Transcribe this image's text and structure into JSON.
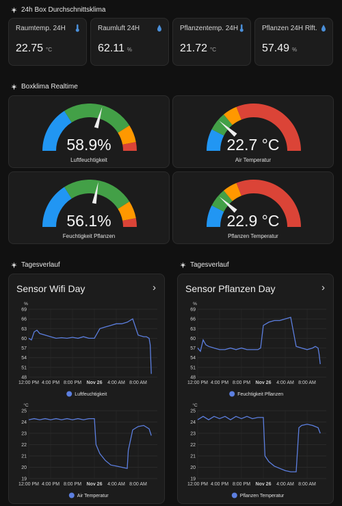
{
  "sections": {
    "avg": "24h Box Durchschnittsklima",
    "realtime": "Boxklima Realtime",
    "history_left": "Tagesverlauf",
    "history_right": "Tagesverlauf"
  },
  "stats": [
    {
      "label": "Raumtemp. 24H",
      "value": "22.75",
      "unit": "°C",
      "icon": "thermometer-icon"
    },
    {
      "label": "Raumluft 24H",
      "value": "62.11",
      "unit": "%",
      "icon": "water-drop-icon"
    },
    {
      "label": "Pflanzentemp. 24H",
      "value": "21.72",
      "unit": "°C",
      "icon": "thermometer-icon"
    },
    {
      "label": "Pflanzen 24H Rlft.",
      "value": "57.49",
      "unit": "%",
      "icon": "water-drop-icon"
    }
  ],
  "gauges": [
    {
      "value": "58.9%",
      "label": "Luftfeuchtigkeit",
      "level": 0.589,
      "type": "humidity"
    },
    {
      "value": "22.7 °C",
      "label": "Air Temperatur",
      "level": 0.227,
      "type": "temp"
    },
    {
      "value": "56.1%",
      "label": "Feuchtigkeit Pflanzen",
      "level": 0.561,
      "type": "humidity"
    },
    {
      "value": "22.9 °C",
      "label": "Pflanzen Temperatur",
      "level": 0.229,
      "type": "temp"
    }
  ],
  "colors": {
    "blue": "#2196f3",
    "green": "#43a047",
    "orange": "#ff9800",
    "red": "#db4437",
    "line": "#5c7fe0"
  },
  "chart_data": [
    {
      "title": "Sensor Wifi Day",
      "type": "line",
      "unit": "%",
      "ylim": [
        48,
        69
      ],
      "yticks": [
        48,
        51,
        54,
        57,
        60,
        63,
        66,
        69
      ],
      "xticks": [
        "12:00 PM",
        "4:00 PM",
        "8:00 PM",
        "Nov 26",
        "4:00 AM",
        "8:00 AM"
      ],
      "series": [
        {
          "name": "Luftfeuchtigkeit",
          "x": [
            0,
            0.5,
            1,
            1.5,
            2,
            3,
            4,
            5,
            6,
            7,
            8,
            9,
            10,
            11,
            12,
            13,
            14,
            15,
            16,
            17,
            18,
            19,
            20,
            21,
            21.5,
            22,
            22.2,
            22.4
          ],
          "values": [
            60,
            59.5,
            62,
            62.5,
            61.5,
            61,
            60.5,
            60,
            60.2,
            60,
            60.3,
            60,
            60.5,
            60,
            60,
            63,
            63.5,
            64,
            64.5,
            64.5,
            65,
            66,
            61,
            60.5,
            60.5,
            60,
            58,
            49
          ]
        }
      ]
    },
    {
      "title": "Sensor Pflanzen Day",
      "type": "line",
      "unit": "%",
      "ylim": [
        48,
        69
      ],
      "yticks": [
        48,
        51,
        54,
        57,
        60,
        63,
        66,
        69
      ],
      "xticks": [
        "12:00 PM",
        "4:00 PM",
        "8:00 PM",
        "Nov 26",
        "4:00 AM",
        "8:00 AM"
      ],
      "series": [
        {
          "name": "Feuchtigkeit Pflanzen",
          "x": [
            0,
            0.5,
            1,
            1.5,
            2,
            3,
            4,
            5,
            6,
            7,
            8,
            9,
            10,
            11,
            11.5,
            12,
            13,
            14,
            15,
            16,
            17,
            18,
            19,
            20,
            21,
            21.5,
            22,
            22.2,
            22.4
          ],
          "values": [
            57,
            56,
            59.5,
            58,
            57.5,
            57,
            56.5,
            56.5,
            57,
            56.5,
            57,
            56.5,
            56.5,
            56.5,
            57,
            64,
            65,
            65.5,
            65.5,
            66,
            66.5,
            57.5,
            57,
            56.5,
            57,
            57.5,
            57,
            55,
            52
          ]
        }
      ]
    },
    {
      "title": "",
      "type": "line",
      "unit": "°C",
      "ylim": [
        19,
        25
      ],
      "yticks": [
        19,
        20,
        21,
        22,
        23,
        24,
        25
      ],
      "xticks": [
        "12:00 PM",
        "4:00 PM",
        "8:00 PM",
        "Nov 26",
        "4:00 AM",
        "8:00 AM"
      ],
      "series": [
        {
          "name": "Air Temperatur",
          "x": [
            0,
            1,
            2,
            3,
            4,
            5,
            6,
            7,
            8,
            9,
            10,
            11,
            12,
            12.3,
            13,
            14,
            15,
            16,
            17,
            18,
            18.2,
            19,
            20,
            21,
            22,
            22.4
          ],
          "values": [
            24.2,
            24.3,
            24.2,
            24.3,
            24.2,
            24.3,
            24.2,
            24.3,
            24.2,
            24.3,
            24.2,
            24.3,
            24.3,
            22,
            21.2,
            20.6,
            20.2,
            20.1,
            20,
            19.9,
            21.5,
            23.3,
            23.6,
            23.7,
            23.4,
            22.8
          ]
        }
      ]
    },
    {
      "title": "",
      "type": "line",
      "unit": "°C",
      "ylim": [
        19,
        25
      ],
      "yticks": [
        19,
        20,
        21,
        22,
        23,
        24,
        25
      ],
      "xticks": [
        "12:00 PM",
        "4:00 PM",
        "8:00 PM",
        "Nov 26",
        "4:00 AM",
        "8:00 AM"
      ],
      "series": [
        {
          "name": "Pflanzen Temperatur",
          "x": [
            0,
            1,
            2,
            3,
            4,
            5,
            6,
            7,
            8,
            9,
            10,
            11,
            12,
            12.3,
            13,
            14,
            15,
            16,
            17,
            18,
            18.5,
            19,
            20,
            21,
            22,
            22.4
          ],
          "values": [
            24.2,
            24.5,
            24.2,
            24.5,
            24.3,
            24.5,
            24.2,
            24.5,
            24.3,
            24.5,
            24.3,
            24.4,
            24.4,
            21,
            20.5,
            20.1,
            19.9,
            19.7,
            19.6,
            19.6,
            23.5,
            23.7,
            23.8,
            23.7,
            23.5,
            23
          ]
        }
      ]
    }
  ]
}
